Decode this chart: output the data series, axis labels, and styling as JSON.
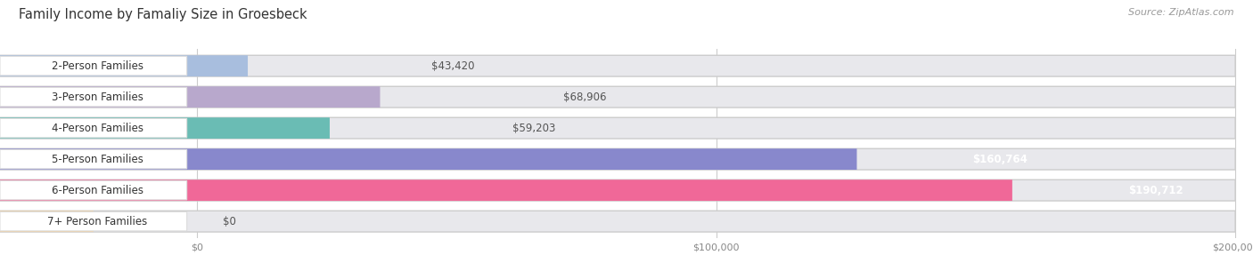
{
  "title": "Family Income by Famaliy Size in Groesbeck",
  "source": "Source: ZipAtlas.com",
  "categories": [
    "2-Person Families",
    "3-Person Families",
    "4-Person Families",
    "5-Person Families",
    "6-Person Families",
    "7+ Person Families"
  ],
  "values": [
    43420,
    68906,
    59203,
    160764,
    190712,
    0
  ],
  "bar_colors": [
    "#a8bede",
    "#b8a8cc",
    "#6abcb4",
    "#8888cc",
    "#f06898",
    "#f0d0a0"
  ],
  "label_colors": [
    "#444444",
    "#444444",
    "#444444",
    "#ffffff",
    "#ffffff",
    "#444444"
  ],
  "xmax": 200000,
  "xtick_labels": [
    "$0",
    "$100,000",
    "$200,000"
  ],
  "value_labels": [
    "$43,420",
    "$68,906",
    "$59,203",
    "$160,764",
    "$190,712",
    "$0"
  ],
  "background_color": "#ffffff",
  "bar_bg_color": "#e8e8ec",
  "title_fontsize": 10.5,
  "source_fontsize": 8,
  "label_fontsize": 8.5,
  "value_fontsize": 8.5
}
